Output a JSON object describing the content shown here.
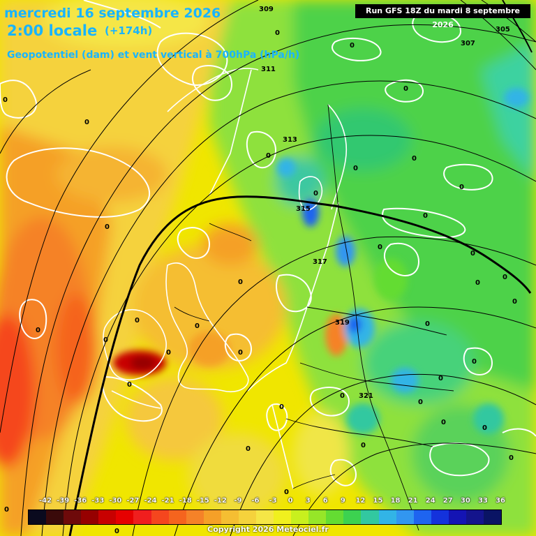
{
  "header": {
    "date": "mercredi 16 septembre 2026",
    "time": "2:00 locale",
    "lead": "(+174h)",
    "parameter": "Geopotentiel (dam) et vent vertical à 700hPa (hPa/h)"
  },
  "run_info": "Run GFS 18Z du mardi 8 septembre 2026",
  "copyright": "Copyright 2026 Meteociel.fr",
  "colorbar": {
    "ticks": [
      "-42",
      "-39",
      "-36",
      "-33",
      "-30",
      "-27",
      "-24",
      "-21",
      "-18",
      "-15",
      "-12",
      "-9",
      "-6",
      "-3",
      "0",
      "3",
      "6",
      "9",
      "12",
      "15",
      "18",
      "21",
      "24",
      "27",
      "30",
      "33",
      "36"
    ],
    "colors": [
      "#0a0a1e",
      "#3a0a0a",
      "#6e0a0a",
      "#960000",
      "#c80000",
      "#e60000",
      "#f01e1e",
      "#f5461e",
      "#f5641e",
      "#f58228",
      "#f5a028",
      "#f5be32",
      "#f5d23c",
      "#f5e646",
      "#f0f01e",
      "#c8f01e",
      "#96e628",
      "#64dc32",
      "#3cd250",
      "#32c8a0",
      "#32b4e6",
      "#3296f0",
      "#1e64f0",
      "#1432dc",
      "#1414b4",
      "#14148c",
      "#0a1464"
    ]
  },
  "isohypses": [
    {
      "label": "305"
    },
    {
      "label": "307"
    },
    {
      "label": "309"
    },
    {
      "label": "311"
    },
    {
      "label": "313"
    },
    {
      "label": "315"
    },
    {
      "label": "317"
    },
    {
      "label": "319"
    },
    {
      "label": "321"
    }
  ],
  "zero_labels": [
    "0",
    "0",
    "0",
    "0",
    "0",
    "0",
    "0",
    "0",
    "0",
    "0",
    "0",
    "0",
    "0",
    "0",
    "0",
    "0",
    "0",
    "0",
    "0",
    "0",
    "0",
    "0",
    "0",
    "0",
    "0",
    "0",
    "0",
    "0",
    "0",
    "0",
    "0",
    "0",
    "0",
    "0",
    "0",
    "0",
    "0",
    "0",
    "0"
  ]
}
